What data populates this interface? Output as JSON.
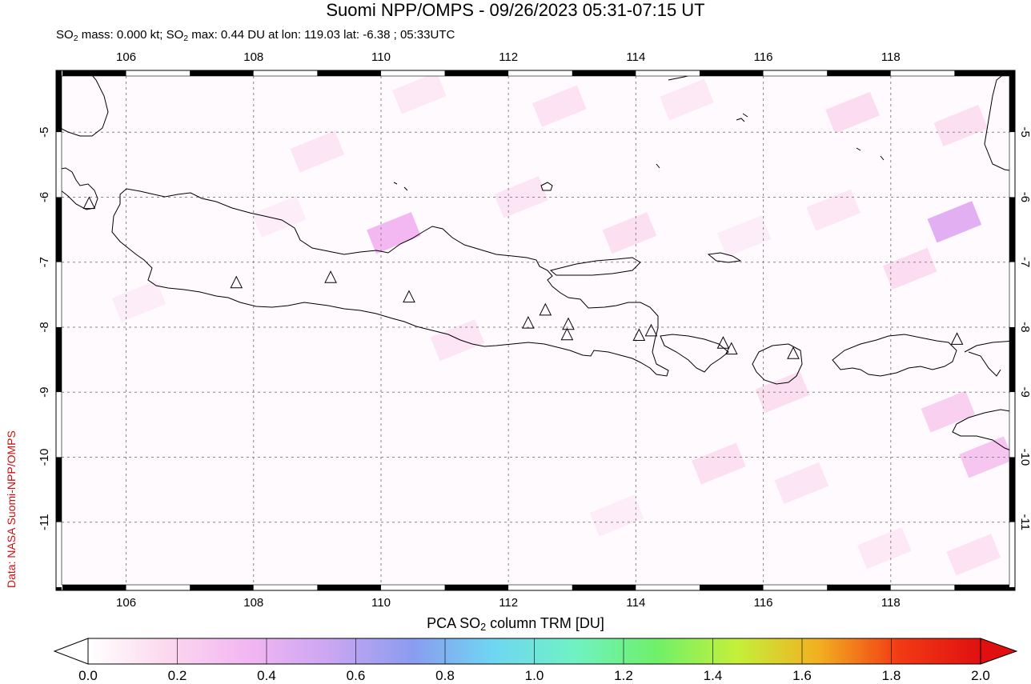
{
  "title": "Suomi NPP/OMPS - 09/26/2023 05:31-07:15 UT",
  "subtitle": {
    "p1": "SO",
    "p1sub": "2",
    "p2": " mass: 0.000 kt; SO",
    "p2sub": "2",
    "p3": " max: 0.44 DU at lon: 119.03 lat: -6.38 ; 05:33UTC"
  },
  "credit": "Data: NASA Suomi-NPP/OMPS",
  "colorbar": {
    "title_pre": "PCA SO",
    "title_sub": "2",
    "title_post": " column TRM [DU]",
    "labels": [
      "0.0",
      "0.2",
      "0.4",
      "0.6",
      "0.8",
      "1.0",
      "1.2",
      "1.4",
      "1.6",
      "1.8",
      "2.0"
    ],
    "range": [
      0.0,
      2.0
    ],
    "colors": [
      "#ffffff",
      "#fbd7ee",
      "#f2b5f2",
      "#c9a6f2",
      "#8a9cf0",
      "#6fd6f2",
      "#6ff2c4",
      "#6ff06a",
      "#c4f03a",
      "#f2b020",
      "#f23a14",
      "#e01010"
    ]
  },
  "map": {
    "lon_range": [
      104.9,
      119.95
    ],
    "lat_range": [
      -12.05,
      -4.05
    ],
    "lon_ticks": [
      "106",
      "108",
      "110",
      "112",
      "114",
      "116",
      "118"
    ],
    "lat_ticks": [
      "-5",
      "-6",
      "-7",
      "-8",
      "-9",
      "-10",
      "-11"
    ],
    "gridlines": true,
    "volcanoes": [
      {
        "lon": 105.42,
        "lat": -6.1
      },
      {
        "lon": 107.73,
        "lat": -7.32
      },
      {
        "lon": 109.21,
        "lat": -7.24
      },
      {
        "lon": 110.44,
        "lat": -7.54
      },
      {
        "lon": 112.31,
        "lat": -7.94
      },
      {
        "lon": 112.58,
        "lat": -7.74
      },
      {
        "lon": 112.94,
        "lat": -7.96
      },
      {
        "lon": 112.92,
        "lat": -8.12
      },
      {
        "lon": 114.05,
        "lat": -8.13
      },
      {
        "lon": 114.24,
        "lat": -8.06
      },
      {
        "lon": 115.37,
        "lat": -8.25
      },
      {
        "lon": 115.5,
        "lat": -8.34
      },
      {
        "lon": 116.47,
        "lat": -8.41
      },
      {
        "lon": 119.04,
        "lat": -8.19
      }
    ],
    "so2_cells": [
      {
        "lon": 110.2,
        "lat": -6.55,
        "value": 0.35
      },
      {
        "lon": 119.0,
        "lat": -6.38,
        "value": 0.44
      },
      {
        "lon": 113.9,
        "lat": -6.55,
        "value": 0.14
      },
      {
        "lon": 111.2,
        "lat": -8.2,
        "value": 0.12
      },
      {
        "lon": 109.0,
        "lat": -5.3,
        "value": 0.12
      },
      {
        "lon": 112.8,
        "lat": -4.6,
        "value": 0.13
      },
      {
        "lon": 116.3,
        "lat": -9.0,
        "value": 0.15
      },
      {
        "lon": 117.4,
        "lat": -4.7,
        "value": 0.16
      },
      {
        "lon": 118.9,
        "lat": -9.3,
        "value": 0.22
      },
      {
        "lon": 119.5,
        "lat": -10.0,
        "value": 0.28
      },
      {
        "lon": 112.2,
        "lat": -6.0,
        "value": 0.12
      },
      {
        "lon": 110.6,
        "lat": -4.4,
        "value": 0.1
      },
      {
        "lon": 115.3,
        "lat": -10.1,
        "value": 0.14
      },
      {
        "lon": 118.3,
        "lat": -7.1,
        "value": 0.16
      },
      {
        "lon": 119.3,
        "lat": -11.5,
        "value": 0.13
      },
      {
        "lon": 106.2,
        "lat": -7.6,
        "value": 0.08
      },
      {
        "lon": 114.8,
        "lat": -4.5,
        "value": 0.1
      },
      {
        "lon": 117.1,
        "lat": -6.2,
        "value": 0.11
      },
      {
        "lon": 116.6,
        "lat": -10.4,
        "value": 0.12
      },
      {
        "lon": 117.9,
        "lat": -11.4,
        "value": 0.1
      },
      {
        "lon": 108.4,
        "lat": -6.3,
        "value": 0.08
      },
      {
        "lon": 113.7,
        "lat": -10.9,
        "value": 0.08
      },
      {
        "lon": 115.7,
        "lat": -6.6,
        "value": 0.08
      },
      {
        "lon": 119.1,
        "lat": -4.9,
        "value": 0.14
      }
    ]
  }
}
